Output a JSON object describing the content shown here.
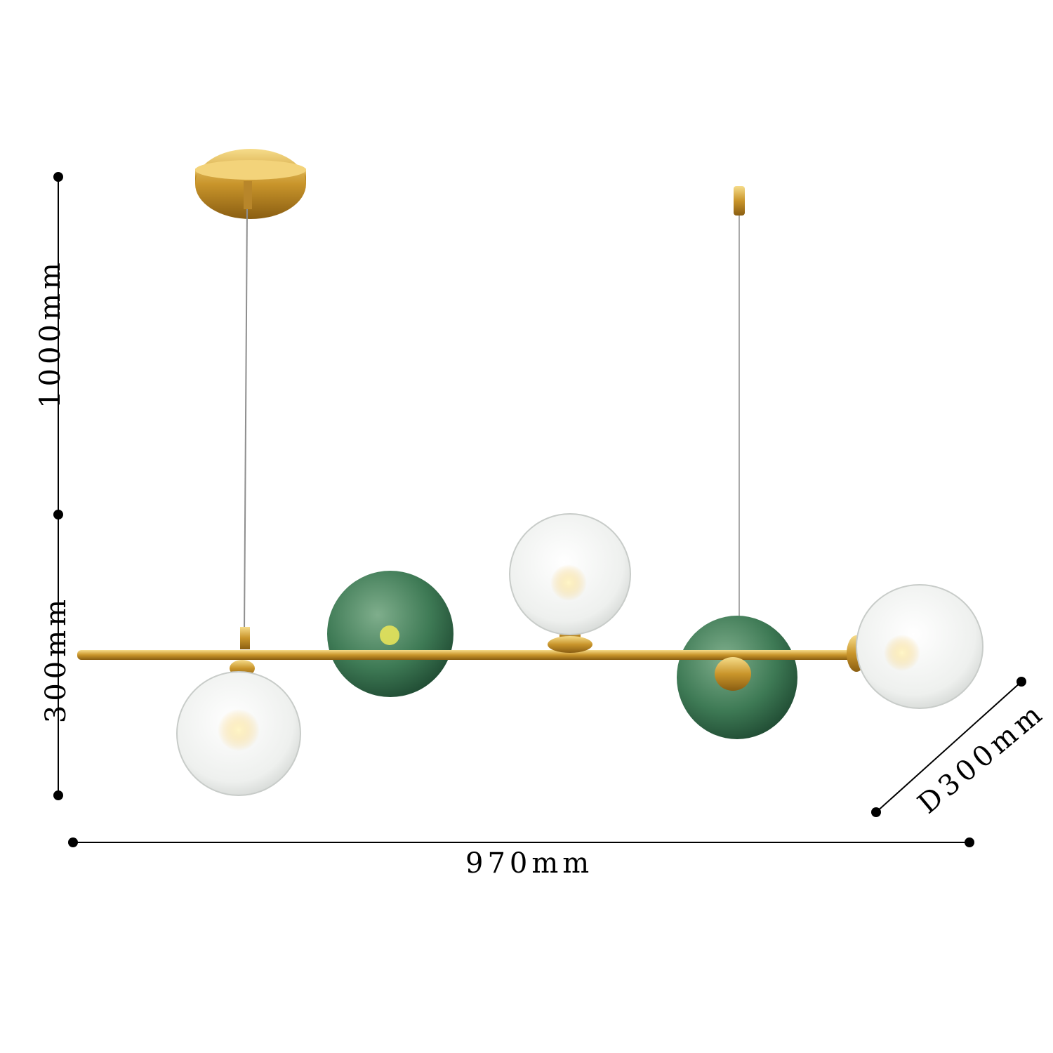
{
  "dimensions": {
    "height_total": "1000mm",
    "height_body": "300mm",
    "length": "970mm",
    "depth": "D300mm"
  },
  "colors": {
    "gold": "#d4a53a",
    "green_glass": "#3e7a55",
    "clear_glass": "#e9ecea",
    "dimension_line": "#000000"
  }
}
